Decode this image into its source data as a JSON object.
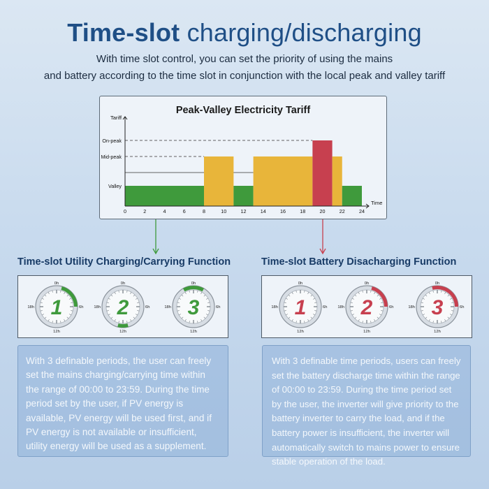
{
  "header": {
    "title_bold": "Time-slot",
    "title_light": "charging/discharging",
    "subtitle_line1": "With time slot control, you can set the priority of using the mains",
    "subtitle_line2": "and battery according to the time slot in conjunction with the local peak and valley tariff"
  },
  "chart_data": {
    "type": "bar",
    "title": "Peak-Valley Electricity Tariff",
    "ylabel": "Tariff",
    "xlabel": "Time",
    "y_levels": [
      "Valley",
      "Mid-peak",
      "On-peak"
    ],
    "x_ticks": [
      "0",
      "2",
      "4",
      "6",
      "8",
      "10",
      "12",
      "14",
      "16",
      "18",
      "20",
      "22",
      "24"
    ],
    "xlim": [
      0,
      24
    ],
    "segments": [
      {
        "start": 0,
        "end": 8,
        "level": "Valley",
        "color": "#3f9a3c"
      },
      {
        "start": 8,
        "end": 11,
        "level": "Mid-peak",
        "color": "#e8b53a"
      },
      {
        "start": 11,
        "end": 13,
        "level": "Valley",
        "color": "#3f9a3c"
      },
      {
        "start": 13,
        "end": 19,
        "level": "Mid-peak",
        "color": "#e8b53a"
      },
      {
        "start": 19,
        "end": 21,
        "level": "On-peak",
        "color": "#c7404f"
      },
      {
        "start": 21,
        "end": 22,
        "level": "Mid-peak",
        "color": "#e8b53a"
      },
      {
        "start": 22,
        "end": 24,
        "level": "Valley",
        "color": "#3f9a3c"
      }
    ]
  },
  "left_section": {
    "title": "Time-slot Utility Charging/Carrying Function",
    "accent": "#3f9a3c",
    "clocks": [
      {
        "number": "1",
        "label_top": "0h",
        "label_right": "6h",
        "label_bottom": "12h",
        "label_left": "18h",
        "arc_start_h": 1,
        "arc_end_h": 6
      },
      {
        "number": "2",
        "label_top": "0h",
        "label_right": "6h",
        "label_bottom": "12h",
        "label_left": "18h",
        "arc_start_h": 11,
        "arc_end_h": 13
      },
      {
        "number": "3",
        "label_top": "0h",
        "label_right": "6h",
        "label_bottom": "12h",
        "label_left": "18h",
        "arc_start_h": 22,
        "arc_end_h": 2
      }
    ],
    "description": "With 3 definable periods, the user can freely set the mains charging/carrying time within the range of 00:00 to 23:59. During the time period set by the user, if PV energy is available, PV energy will be used first, and if PV energy is not available or insufficient, utility energy will be used as a supplement."
  },
  "right_section": {
    "title": "Time-slot Battery Disacharging Function",
    "accent": "#c7404f",
    "clocks": [
      {
        "number": "1",
        "label_top": "0h",
        "label_right": "6h",
        "label_bottom": "12h",
        "label_left": "18h",
        "arc_start_h": 0,
        "arc_end_h": 0
      },
      {
        "number": "2",
        "label_top": "0h",
        "label_right": "6h",
        "label_bottom": "12h",
        "label_left": "18h",
        "arc_start_h": 1,
        "arc_end_h": 6
      },
      {
        "number": "3",
        "label_top": "0h",
        "label_right": "6h",
        "label_bottom": "12h",
        "label_left": "18h",
        "arc_start_h": 23,
        "arc_end_h": 6
      }
    ],
    "description": "With 3 definable time periods, users can freely set the battery discharge time within the range of 00:00 to 23:59. During the time period set by the user, the inverter will give priority to the battery inverter to carry the load, and if the battery power is insufficient, the inverter will automatically switch to mains power to ensure stable operation of the load."
  }
}
